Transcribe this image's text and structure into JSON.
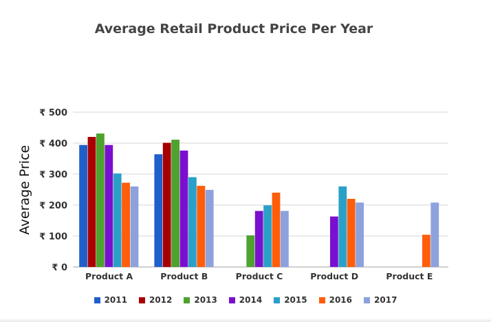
{
  "chart_data": {
    "type": "bar",
    "title": "Average Retail Product Price Per Year",
    "xlabel": "",
    "ylabel": "Average Price",
    "ylim": [
      0,
      500
    ],
    "yticks": [
      "₹ 0",
      "₹ 100",
      "₹ 200",
      "₹ 300",
      "₹ 400",
      "₹ 500"
    ],
    "ytick_values": [
      0,
      100,
      200,
      300,
      400,
      500
    ],
    "grid": true,
    "legend_position": "bottom",
    "categories": [
      "Product A",
      "Product B",
      "Product C",
      "Product D",
      "Product E"
    ],
    "series": [
      {
        "name": "2011",
        "color": "#1f5fcc",
        "values": [
          394,
          364,
          null,
          null,
          null
        ]
      },
      {
        "name": "2012",
        "color": "#a80000",
        "values": [
          420,
          401,
          null,
          null,
          null
        ]
      },
      {
        "name": "2013",
        "color": "#4ea22e",
        "values": [
          431,
          411,
          102,
          null,
          null
        ]
      },
      {
        "name": "2014",
        "color": "#7a10cf",
        "values": [
          394,
          376,
          181,
          163,
          null
        ]
      },
      {
        "name": "2015",
        "color": "#2aa0c8",
        "values": [
          302,
          290,
          199,
          260,
          null
        ]
      },
      {
        "name": "2016",
        "color": "#ff5d0a",
        "values": [
          272,
          262,
          240,
          220,
          104
        ]
      },
      {
        "name": "2017",
        "color": "#8da2dd",
        "values": [
          260,
          249,
          181,
          208,
          208
        ]
      }
    ]
  }
}
